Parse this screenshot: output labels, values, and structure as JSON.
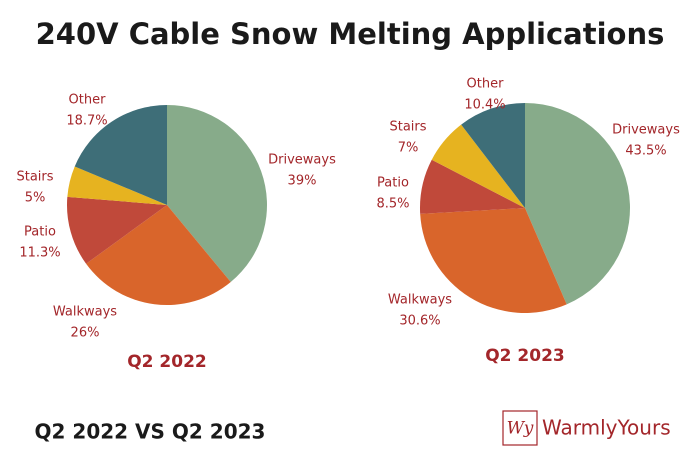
{
  "title": "240V Cable Snow Melting Applications",
  "footer": "Q2 2022 VS Q2 2023",
  "logo": {
    "mark": "Wy",
    "text": "WarmlyYours"
  },
  "chart_data": [
    {
      "type": "pie",
      "title": "Q2 2022",
      "categories": [
        "Driveways",
        "Walkways",
        "Patio",
        "Stairs",
        "Other"
      ],
      "values": [
        39,
        26,
        11.3,
        5,
        18.7
      ],
      "value_labels": [
        "39%",
        "26%",
        "11.3%",
        "5%",
        "18.7%"
      ],
      "colors": [
        "#87ab8a",
        "#d9652b",
        "#c0493a",
        "#e6b320",
        "#3e6e78"
      ]
    },
    {
      "type": "pie",
      "title": "Q2 2023",
      "categories": [
        "Driveways",
        "Walkways",
        "Patio",
        "Stairs",
        "Other"
      ],
      "values": [
        43.5,
        30.6,
        8.5,
        7,
        10.4
      ],
      "value_labels": [
        "43.5%",
        "30.6%",
        "8.5%",
        "7%",
        "10.4%"
      ],
      "colors": [
        "#87ab8a",
        "#d9652b",
        "#c0493a",
        "#e6b320",
        "#3e6e78"
      ]
    }
  ]
}
